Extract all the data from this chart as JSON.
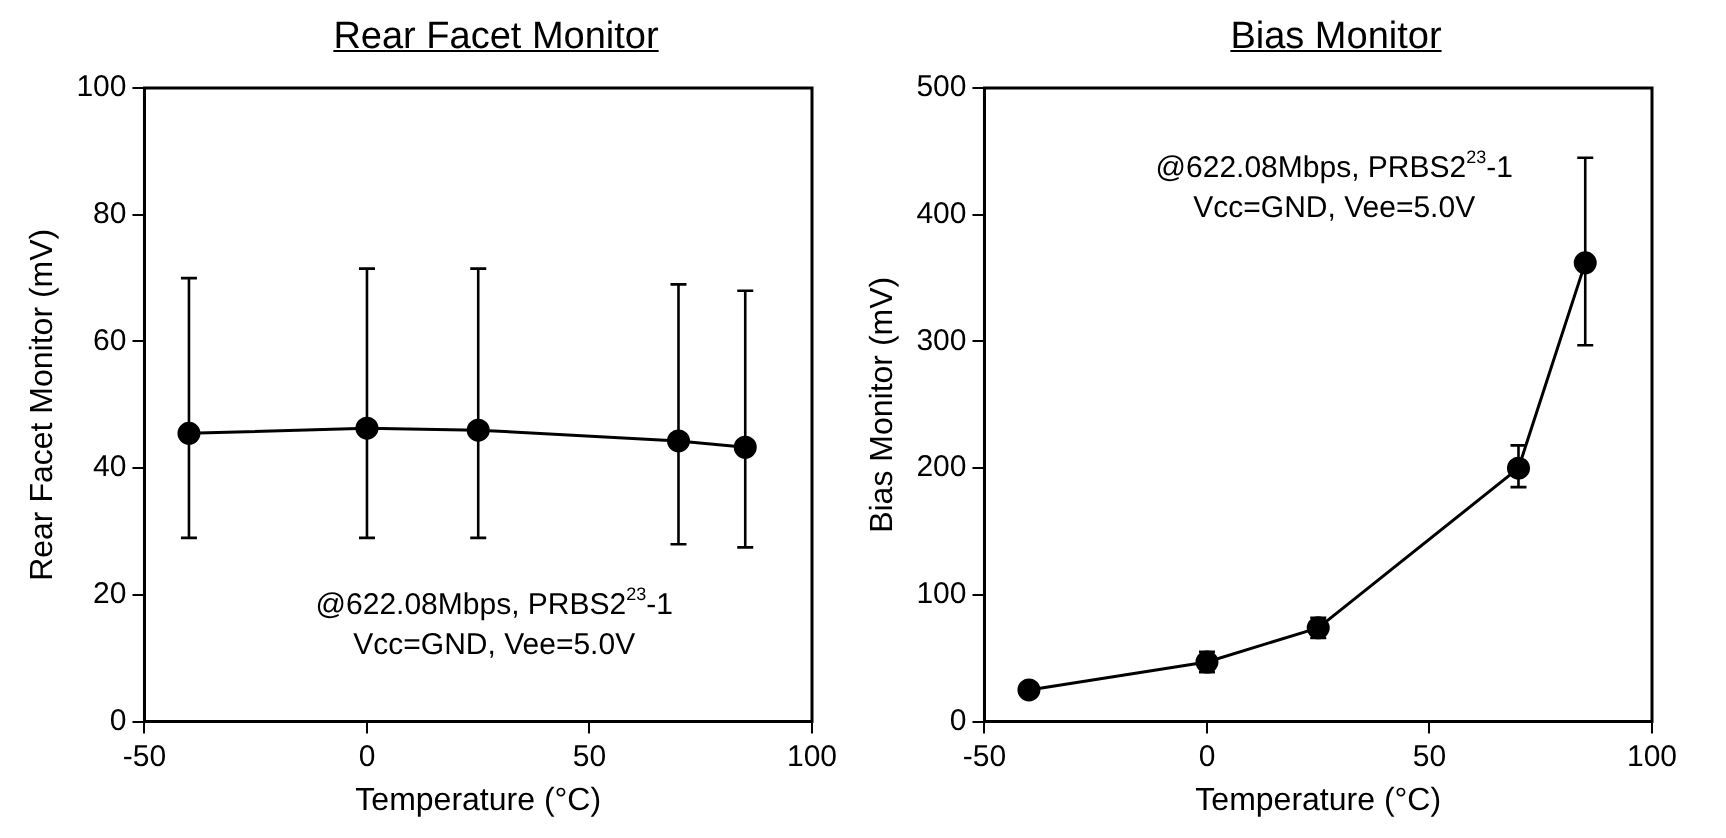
{
  "chart_data": [
    {
      "type": "line",
      "title": "Rear Facet Monitor",
      "xlabel": "Temperature (°C)",
      "ylabel": "Rear Facet Monitor (mV)",
      "x": [
        -40,
        0,
        25,
        70,
        85
      ],
      "series": [
        {
          "color": "#000000",
          "values": [
            45.5,
            46.3,
            46,
            44.3,
            43.3
          ],
          "errors": [
            [
              29,
              70
            ],
            [
              29,
              71.5
            ],
            [
              29,
              71.5
            ],
            [
              28,
              69
            ],
            [
              27.5,
              68
            ]
          ]
        }
      ],
      "xlim": [
        -50,
        100
      ],
      "xticks": [
        -50,
        0,
        50,
        100
      ],
      "ylim": [
        0,
        100
      ],
      "yticks": [
        0,
        20,
        40,
        60,
        80,
        100
      ],
      "grid": false,
      "legend": false,
      "marker": "circle",
      "line_style": "solid",
      "annotations": [
        "@622.08Mbps, PRBS2$^{23}$-1",
        "Vcc=GND, Vee=5.0V"
      ]
    },
    {
      "type": "line",
      "title": "Bias Monitor",
      "xlabel": "Temperature (°C)",
      "ylabel": "Bias Monitor (mV)",
      "x": [
        -40,
        0,
        25,
        70,
        85
      ],
      "series": [
        {
          "color": "#000000",
          "values": [
            25,
            47,
            74,
            200,
            362
          ],
          "errors": [
            null,
            [
              39,
              55
            ],
            [
              66,
              82
            ],
            [
              185,
              218
            ],
            [
              297,
              445
            ]
          ]
        }
      ],
      "xlim": [
        -50,
        100
      ],
      "xticks": [
        -50,
        0,
        50,
        100
      ],
      "ylim": [
        0,
        500
      ],
      "yticks": [
        0,
        100,
        200,
        300,
        400,
        500
      ],
      "grid": false,
      "legend": false,
      "marker": "circle",
      "line_style": "solid",
      "annotations": [
        "@622.08Mbps, PRBS2$^{23}$-1",
        "Vcc=GND, Vee=5.0V"
      ]
    }
  ]
}
